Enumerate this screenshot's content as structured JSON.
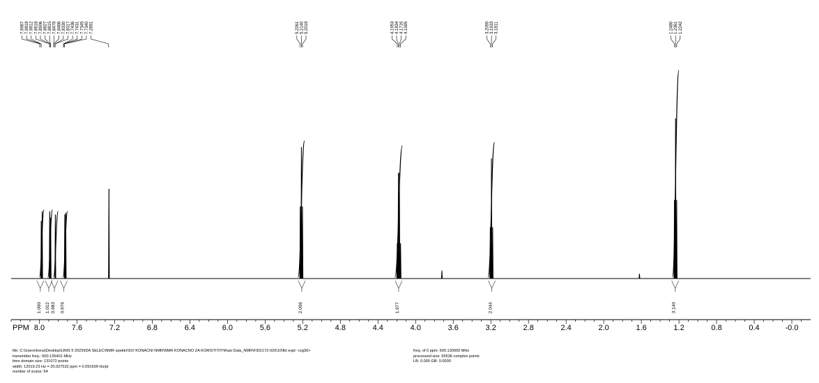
{
  "chart_data": {
    "type": "line",
    "xlabel": "PPM",
    "x_axis_reversed": true,
    "xlim": [
      8.3,
      -0.2
    ],
    "x_ticks": [
      "8.0",
      "7.6",
      "7.2",
      "6.8",
      "6.4",
      "6.0",
      "5.6",
      "5.2",
      "4.8",
      "4.4",
      "4.0",
      "3.6",
      "3.2",
      "2.8",
      "2.4",
      "2.0",
      "1.6",
      "1.2",
      "0.8",
      "0.4",
      "-0.0"
    ],
    "ylim": [
      0,
      1
    ],
    "grid": false,
    "line_color": "#000000",
    "peaks": [
      {
        "ppm": 7.98,
        "height": 0.36
      },
      {
        "ppm": 7.97,
        "height": 0.42
      },
      {
        "ppm": 7.89,
        "height": 0.42
      },
      {
        "ppm": 7.88,
        "height": 0.38
      },
      {
        "ppm": 7.83,
        "height": 0.4
      },
      {
        "ppm": 7.73,
        "height": 0.4
      },
      {
        "ppm": 7.72,
        "height": 0.41
      },
      {
        "ppm": 7.26,
        "height": 0.56
      },
      {
        "ppm": 5.226,
        "height": 0.45
      },
      {
        "ppm": 5.214,
        "height": 0.82
      },
      {
        "ppm": 5.202,
        "height": 0.45
      },
      {
        "ppm": 4.195,
        "height": 0.22
      },
      {
        "ppm": 4.183,
        "height": 0.66
      },
      {
        "ppm": 4.172,
        "height": 0.66
      },
      {
        "ppm": 4.16,
        "height": 0.22
      },
      {
        "ppm": 3.72,
        "height": 0.05
      },
      {
        "ppm": 3.206,
        "height": 0.32
      },
      {
        "ppm": 3.193,
        "height": 0.75
      },
      {
        "ppm": 3.181,
        "height": 0.32
      },
      {
        "ppm": 1.62,
        "height": 0.03
      },
      {
        "ppm": 1.248,
        "height": 0.49
      },
      {
        "ppm": 1.236,
        "height": 1.0
      },
      {
        "ppm": 1.224,
        "height": 0.49
      }
    ],
    "integrals": [
      {
        "from": 8.0,
        "to": 7.95,
        "value": "1.000",
        "label_ppm": 7.99,
        "rise": 0.43
      },
      {
        "from": 7.91,
        "to": 7.86,
        "value": "1.012",
        "label_ppm": 7.9,
        "rise": 0.43
      },
      {
        "from": 7.85,
        "to": 7.8,
        "value": "0.983",
        "label_ppm": 7.84,
        "rise": 0.42
      },
      {
        "from": 7.75,
        "to": 7.7,
        "value": "0.976",
        "label_ppm": 7.74,
        "rise": 0.42
      },
      {
        "from": 5.25,
        "to": 5.18,
        "value": "2.006",
        "label_ppm": 5.21,
        "rise": 0.86
      },
      {
        "from": 4.22,
        "to": 4.14,
        "value": "1.977",
        "label_ppm": 4.18,
        "rise": 0.83
      },
      {
        "from": 3.23,
        "to": 3.16,
        "value": "2.044",
        "label_ppm": 3.19,
        "rise": 0.85
      },
      {
        "from": 1.27,
        "to": 1.2,
        "value": "3.140",
        "label_ppm": 1.24,
        "rise": 1.3
      }
    ],
    "peak_label_groups": [
      {
        "labels": [
          "7.9967",
          "7.9818",
          "7.9812",
          "7.8918",
          "7.8906",
          "7.8827",
          "7.8815",
          "7.8478",
          "7.8466",
          "7.8330",
          "7.8317",
          "7.7436",
          "7.7431",
          "7.7345",
          "7.7340",
          "7.2651"
        ],
        "ppms": [
          7.997,
          7.982,
          7.981,
          7.892,
          7.891,
          7.883,
          7.882,
          7.848,
          7.847,
          7.833,
          7.832,
          7.744,
          7.743,
          7.735,
          7.734,
          7.265
        ]
      },
      {
        "labels": [
          "5.2261",
          "5.2140",
          "5.2018"
        ],
        "ppms": [
          5.226,
          5.214,
          5.202
        ]
      },
      {
        "labels": [
          "4.1953",
          "4.1834",
          "4.1716",
          "4.1595"
        ],
        "ppms": [
          4.195,
          4.183,
          4.172,
          4.16
        ]
      },
      {
        "labels": [
          "3.2055",
          "3.1933",
          "3.1811"
        ],
        "ppms": [
          3.206,
          3.193,
          3.181
        ]
      },
      {
        "labels": [
          "1.2480",
          "1.2361",
          "1.2242"
        ],
        "ppms": [
          1.248,
          1.236,
          1.224
        ]
      }
    ]
  },
  "info": {
    "left": [
      "file: C:\\Users\\Irena\\Desktop\\IJMS II 2023\\IDA SELEC\\NMR spektri\\SVI KONACNI NMR\\NMR KONACNO ZA KORISTITI!!!\\Raw Data_NMR\\FID2172-020\\10\\fid   expt: <zg30>",
      "transmitter freq.: 600.135401 MHz",
      "time domain size: 131072 points",
      "width: 12019.23 Hz = 20.027532 ppm = 0.091699 Hz/pt",
      "number of scans: 64"
    ],
    "right": [
      "freq. of 0 ppm: 600.130000 MHz",
      "processed size: 65536 complex points",
      "LB:   0.000   GB: 0.0000"
    ]
  }
}
